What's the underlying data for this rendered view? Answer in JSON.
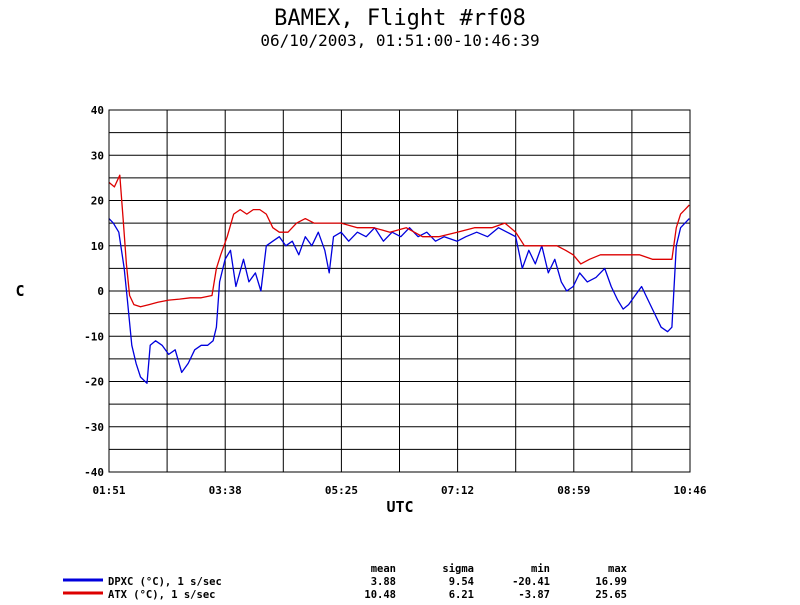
{
  "chart_data": {
    "type": "line",
    "title": "BAMEX, Flight #rf08",
    "subtitle": "06/10/2003, 01:51:00-10:46:39",
    "xlabel": "UTC",
    "ylabel": "C",
    "x_ticks": [
      "01:51",
      "03:38",
      "05:25",
      "07:12",
      "08:59",
      "10:46"
    ],
    "y_ticks": [
      40,
      30,
      20,
      10,
      0,
      -10,
      -20,
      -30,
      -40
    ],
    "ylim": [
      -40,
      40
    ],
    "xlim": [
      "01:51:00",
      "10:46:39"
    ],
    "grid": true,
    "series": [
      {
        "name": "DPXC (°C), 1 s/sec",
        "color": "#0000dd",
        "points": [
          [
            "01:51",
            16
          ],
          [
            "01:55",
            15
          ],
          [
            "02:00",
            13
          ],
          [
            "02:05",
            5
          ],
          [
            "02:08",
            -2
          ],
          [
            "02:12",
            -12
          ],
          [
            "02:16",
            -16
          ],
          [
            "02:20",
            -19
          ],
          [
            "02:26",
            -20.4
          ],
          [
            "02:29",
            -12
          ],
          [
            "02:34",
            -11
          ],
          [
            "02:40",
            -12
          ],
          [
            "02:46",
            -14
          ],
          [
            "02:52",
            -13
          ],
          [
            "02:58",
            -18
          ],
          [
            "03:04",
            -16
          ],
          [
            "03:10",
            -13
          ],
          [
            "03:16",
            -12
          ],
          [
            "03:22",
            -12
          ],
          [
            "03:27",
            -11
          ],
          [
            "03:30",
            -8
          ],
          [
            "03:33",
            2
          ],
          [
            "03:38",
            7
          ],
          [
            "03:43",
            9
          ],
          [
            "03:48",
            1
          ],
          [
            "03:55",
            7
          ],
          [
            "04:00",
            2
          ],
          [
            "04:06",
            4
          ],
          [
            "04:11",
            0
          ],
          [
            "04:16",
            10
          ],
          [
            "04:22",
            11
          ],
          [
            "04:28",
            12
          ],
          [
            "04:34",
            10
          ],
          [
            "04:40",
            11
          ],
          [
            "04:46",
            8
          ],
          [
            "04:52",
            12
          ],
          [
            "04:58",
            10
          ],
          [
            "05:04",
            13
          ],
          [
            "05:10",
            9
          ],
          [
            "05:14",
            4
          ],
          [
            "05:18",
            12
          ],
          [
            "05:25",
            13
          ],
          [
            "05:32",
            11
          ],
          [
            "05:40",
            13
          ],
          [
            "05:48",
            12
          ],
          [
            "05:56",
            14
          ],
          [
            "06:04",
            11
          ],
          [
            "06:12",
            13
          ],
          [
            "06:20",
            12
          ],
          [
            "06:28",
            14
          ],
          [
            "06:36",
            12
          ],
          [
            "06:44",
            13
          ],
          [
            "06:52",
            11
          ],
          [
            "07:00",
            12
          ],
          [
            "07:12",
            11
          ],
          [
            "07:20",
            12
          ],
          [
            "07:30",
            13
          ],
          [
            "07:40",
            12
          ],
          [
            "07:50",
            14
          ],
          [
            "07:58",
            13
          ],
          [
            "08:06",
            12
          ],
          [
            "08:12",
            5
          ],
          [
            "08:18",
            9
          ],
          [
            "08:24",
            6
          ],
          [
            "08:30",
            10
          ],
          [
            "08:36",
            4
          ],
          [
            "08:42",
            7
          ],
          [
            "08:48",
            2
          ],
          [
            "08:53",
            0
          ],
          [
            "08:59",
            1
          ],
          [
            "09:05",
            4
          ],
          [
            "09:12",
            2
          ],
          [
            "09:20",
            3
          ],
          [
            "09:28",
            5
          ],
          [
            "09:34",
            1
          ],
          [
            "09:40",
            -2
          ],
          [
            "09:45",
            -4
          ],
          [
            "09:50",
            -3
          ],
          [
            "09:56",
            -1
          ],
          [
            "10:02",
            1
          ],
          [
            "10:08",
            -2
          ],
          [
            "10:14",
            -5
          ],
          [
            "10:20",
            -8
          ],
          [
            "10:26",
            -9
          ],
          [
            "10:30",
            -8
          ],
          [
            "10:34",
            10
          ],
          [
            "10:38",
            14
          ],
          [
            "10:42",
            15
          ],
          [
            "10:46",
            16
          ]
        ]
      },
      {
        "name": "ATX (°C), 1 s/sec",
        "color": "#dd0000",
        "points": [
          [
            "01:51",
            24
          ],
          [
            "01:56",
            23
          ],
          [
            "02:01",
            25.6
          ],
          [
            "02:04",
            16
          ],
          [
            "02:07",
            6
          ],
          [
            "02:10",
            -1
          ],
          [
            "02:14",
            -3
          ],
          [
            "02:20",
            -3.5
          ],
          [
            "02:28",
            -3
          ],
          [
            "02:36",
            -2.5
          ],
          [
            "02:46",
            -2
          ],
          [
            "02:56",
            -1.8
          ],
          [
            "03:06",
            -1.5
          ],
          [
            "03:16",
            -1.5
          ],
          [
            "03:26",
            -1
          ],
          [
            "03:30",
            5
          ],
          [
            "03:34",
            8
          ],
          [
            "03:40",
            12
          ],
          [
            "03:46",
            17
          ],
          [
            "03:52",
            18
          ],
          [
            "03:58",
            17
          ],
          [
            "04:04",
            18
          ],
          [
            "04:10",
            18
          ],
          [
            "04:16",
            17
          ],
          [
            "04:22",
            14
          ],
          [
            "04:28",
            13
          ],
          [
            "04:36",
            13
          ],
          [
            "04:44",
            15
          ],
          [
            "04:52",
            16
          ],
          [
            "05:00",
            15
          ],
          [
            "05:10",
            15
          ],
          [
            "05:25",
            15
          ],
          [
            "05:40",
            14
          ],
          [
            "05:55",
            14
          ],
          [
            "06:10",
            13
          ],
          [
            "06:25",
            14
          ],
          [
            "06:40",
            12
          ],
          [
            "06:55",
            12
          ],
          [
            "07:12",
            13
          ],
          [
            "07:28",
            14
          ],
          [
            "07:44",
            14
          ],
          [
            "07:56",
            15
          ],
          [
            "08:06",
            13
          ],
          [
            "08:14",
            10
          ],
          [
            "08:24",
            10
          ],
          [
            "08:34",
            10
          ],
          [
            "08:44",
            10
          ],
          [
            "08:52",
            9
          ],
          [
            "08:59",
            8
          ],
          [
            "09:06",
            6
          ],
          [
            "09:14",
            7
          ],
          [
            "09:24",
            8
          ],
          [
            "09:36",
            8
          ],
          [
            "09:48",
            8
          ],
          [
            "10:00",
            8
          ],
          [
            "10:12",
            7
          ],
          [
            "10:24",
            7
          ],
          [
            "10:30",
            7
          ],
          [
            "10:34",
            14
          ],
          [
            "10:38",
            17
          ],
          [
            "10:42",
            18
          ],
          [
            "10:46",
            19
          ]
        ]
      }
    ]
  },
  "stats": {
    "headers": [
      "mean",
      "sigma",
      "min",
      "max"
    ],
    "rows": [
      {
        "label": "DPXC (°C), 1 s/sec",
        "color": "#0000dd",
        "mean": "3.88",
        "sigma": "9.54",
        "min": "-20.41",
        "max": "16.99"
      },
      {
        "label": "ATX (°C), 1 s/sec",
        "color": "#dd0000",
        "mean": "10.48",
        "sigma": "6.21",
        "min": "-3.87",
        "max": "25.65"
      }
    ]
  }
}
